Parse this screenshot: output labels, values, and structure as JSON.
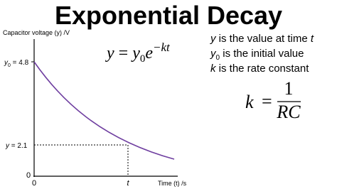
{
  "header": {
    "title": "Exponential Decay"
  },
  "graph": {
    "y_axis_label": "Capacitor voltage (y) /V",
    "x_axis_label": "Time (t) /s",
    "y_labels": [
      {
        "var": "y",
        "sub": "0",
        "text": " = 4.8"
      },
      {
        "var": "y",
        "text": " = 2.1"
      },
      {
        "text": "0"
      }
    ],
    "x_labels": [
      "0",
      "t"
    ]
  },
  "formula": {
    "lhs": "y",
    "eq": " = ",
    "base": "y",
    "sub": "0",
    "e": "e",
    "exp": "−kt"
  },
  "notes": [
    {
      "var": "y",
      "text": " is the value at time ",
      "end": "t"
    },
    {
      "var": "y",
      "sub": "0",
      "text": " is the initial value"
    },
    {
      "var": "k",
      "text": " is the rate constant"
    }
  ],
  "rate": {
    "lhs": "k",
    "eq": "=",
    "num": "1",
    "den": "RC"
  }
}
